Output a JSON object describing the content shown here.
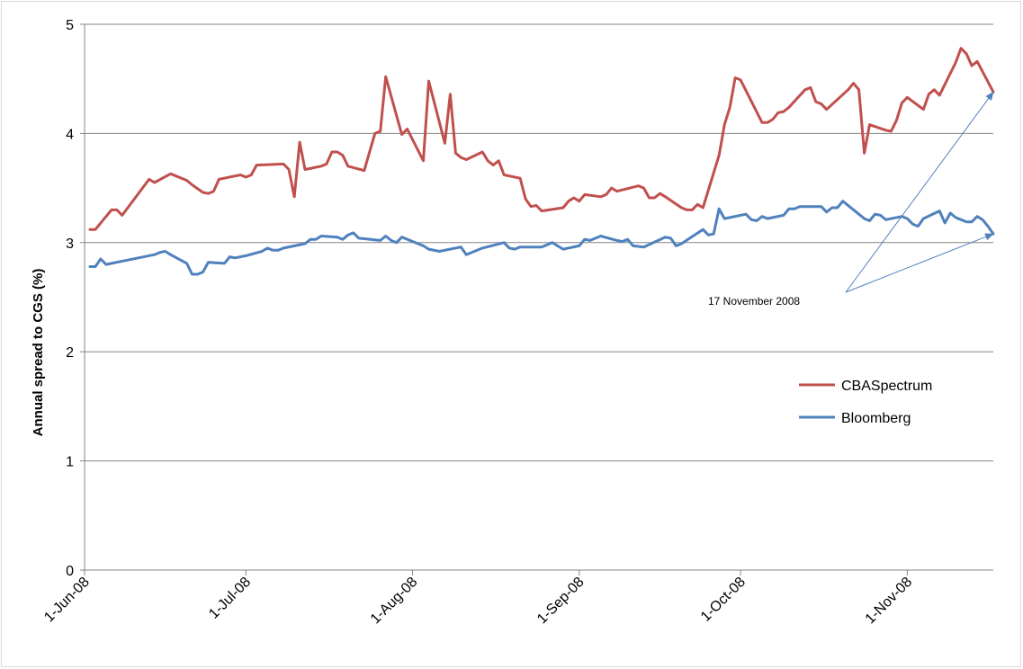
{
  "chart_data": {
    "type": "line",
    "title": "",
    "xlabel": "",
    "ylabel": "Annual spread to CGS (%)",
    "xlim": [
      "2008-06-01",
      "2008-11-17"
    ],
    "ylim": [
      0,
      5
    ],
    "y_ticks": [
      0,
      1,
      2,
      3,
      4,
      5
    ],
    "x_tick_labels": [
      "1-Jun-08",
      "1-Jul-08",
      "1-Aug-08",
      "1-Sep-08",
      "1-Oct-08",
      "1-Nov-08"
    ],
    "x_tick_dates": [
      "2008-06-01",
      "2008-07-01",
      "2008-08-01",
      "2008-09-01",
      "2008-10-01",
      "2008-11-01"
    ],
    "grid": "horizontal",
    "legend_position": "center-right",
    "series": [
      {
        "name": "CBASpectrum",
        "color": "#c0504d",
        "points": [
          [
            "2008-06-02",
            3.12
          ],
          [
            "2008-06-03",
            3.12
          ],
          [
            "2008-06-06",
            3.3
          ],
          [
            "2008-06-07",
            3.3
          ],
          [
            "2008-06-08",
            3.25
          ],
          [
            "2008-06-13",
            3.58
          ],
          [
            "2008-06-14",
            3.55
          ],
          [
            "2008-06-17",
            3.63
          ],
          [
            "2008-06-20",
            3.57
          ],
          [
            "2008-06-21",
            3.53
          ],
          [
            "2008-06-23",
            3.46
          ],
          [
            "2008-06-24",
            3.45
          ],
          [
            "2008-06-25",
            3.47
          ],
          [
            "2008-06-26",
            3.58
          ],
          [
            "2008-06-29",
            3.61
          ],
          [
            "2008-06-30",
            3.62
          ],
          [
            "2008-07-01",
            3.6
          ],
          [
            "2008-07-02",
            3.62
          ],
          [
            "2008-07-03",
            3.71
          ],
          [
            "2008-07-08",
            3.72
          ],
          [
            "2008-07-09",
            3.67
          ],
          [
            "2008-07-10",
            3.42
          ],
          [
            "2008-07-11",
            3.92
          ],
          [
            "2008-07-12",
            3.67
          ],
          [
            "2008-07-15",
            3.7
          ],
          [
            "2008-07-16",
            3.72
          ],
          [
            "2008-07-17",
            3.83
          ],
          [
            "2008-07-18",
            3.83
          ],
          [
            "2008-07-19",
            3.8
          ],
          [
            "2008-07-20",
            3.7
          ],
          [
            "2008-07-23",
            3.66
          ],
          [
            "2008-07-25",
            4.0
          ],
          [
            "2008-07-26",
            4.02
          ],
          [
            "2008-07-27",
            4.52
          ],
          [
            "2008-07-30",
            3.99
          ],
          [
            "2008-07-31",
            4.04
          ],
          [
            "2008-08-03",
            3.75
          ],
          [
            "2008-08-04",
            4.48
          ],
          [
            "2008-08-07",
            3.91
          ],
          [
            "2008-08-08",
            4.36
          ],
          [
            "2008-08-09",
            3.82
          ],
          [
            "2008-08-10",
            3.78
          ],
          [
            "2008-08-11",
            3.76
          ],
          [
            "2008-08-14",
            3.83
          ],
          [
            "2008-08-15",
            3.75
          ],
          [
            "2008-08-16",
            3.71
          ],
          [
            "2008-08-17",
            3.75
          ],
          [
            "2008-08-18",
            3.62
          ],
          [
            "2008-08-21",
            3.59
          ],
          [
            "2008-08-22",
            3.4
          ],
          [
            "2008-08-23",
            3.33
          ],
          [
            "2008-08-24",
            3.34
          ],
          [
            "2008-08-25",
            3.29
          ],
          [
            "2008-08-29",
            3.32
          ],
          [
            "2008-08-30",
            3.38
          ],
          [
            "2008-08-31",
            3.41
          ],
          [
            "2008-09-01",
            3.38
          ],
          [
            "2008-09-02",
            3.44
          ],
          [
            "2008-09-05",
            3.42
          ],
          [
            "2008-09-06",
            3.44
          ],
          [
            "2008-09-07",
            3.5
          ],
          [
            "2008-09-08",
            3.47
          ],
          [
            "2008-09-12",
            3.52
          ],
          [
            "2008-09-13",
            3.5
          ],
          [
            "2008-09-14",
            3.41
          ],
          [
            "2008-09-15",
            3.41
          ],
          [
            "2008-09-16",
            3.45
          ],
          [
            "2008-09-17",
            3.42
          ],
          [
            "2008-09-20",
            3.32
          ],
          [
            "2008-09-21",
            3.3
          ],
          [
            "2008-09-22",
            3.3
          ],
          [
            "2008-09-23",
            3.35
          ],
          [
            "2008-09-24",
            3.32
          ],
          [
            "2008-09-27",
            3.8
          ],
          [
            "2008-09-28",
            4.08
          ],
          [
            "2008-09-29",
            4.24
          ],
          [
            "2008-09-30",
            4.51
          ],
          [
            "2008-10-01",
            4.49
          ],
          [
            "2008-10-05",
            4.1
          ],
          [
            "2008-10-06",
            4.1
          ],
          [
            "2008-10-07",
            4.13
          ],
          [
            "2008-10-08",
            4.19
          ],
          [
            "2008-10-09",
            4.2
          ],
          [
            "2008-10-10",
            4.24
          ],
          [
            "2008-10-13",
            4.4
          ],
          [
            "2008-10-14",
            4.42
          ],
          [
            "2008-10-15",
            4.29
          ],
          [
            "2008-10-16",
            4.27
          ],
          [
            "2008-10-17",
            4.22
          ],
          [
            "2008-10-21",
            4.4
          ],
          [
            "2008-10-22",
            4.46
          ],
          [
            "2008-10-23",
            4.4
          ],
          [
            "2008-10-24",
            3.82
          ],
          [
            "2008-10-25",
            4.08
          ],
          [
            "2008-10-28",
            4.03
          ],
          [
            "2008-10-29",
            4.02
          ],
          [
            "2008-10-30",
            4.12
          ],
          [
            "2008-10-31",
            4.28
          ],
          [
            "2008-11-01",
            4.33
          ],
          [
            "2008-11-04",
            4.22
          ],
          [
            "2008-11-05",
            4.36
          ],
          [
            "2008-11-06",
            4.4
          ],
          [
            "2008-11-07",
            4.35
          ],
          [
            "2008-11-10",
            4.65
          ],
          [
            "2008-11-11",
            4.78
          ],
          [
            "2008-11-12",
            4.73
          ],
          [
            "2008-11-13",
            4.62
          ],
          [
            "2008-11-14",
            4.66
          ],
          [
            "2008-11-17",
            4.38
          ]
        ]
      },
      {
        "name": "Bloomberg",
        "color": "#4f81bd",
        "points": [
          [
            "2008-06-02",
            2.78
          ],
          [
            "2008-06-03",
            2.78
          ],
          [
            "2008-06-04",
            2.85
          ],
          [
            "2008-06-05",
            2.8
          ],
          [
            "2008-06-06",
            2.81
          ],
          [
            "2008-06-11",
            2.86
          ],
          [
            "2008-06-14",
            2.89
          ],
          [
            "2008-06-15",
            2.91
          ],
          [
            "2008-06-16",
            2.92
          ],
          [
            "2008-06-17",
            2.89
          ],
          [
            "2008-06-20",
            2.81
          ],
          [
            "2008-06-21",
            2.71
          ],
          [
            "2008-06-22",
            2.71
          ],
          [
            "2008-06-23",
            2.73
          ],
          [
            "2008-06-24",
            2.82
          ],
          [
            "2008-06-27",
            2.81
          ],
          [
            "2008-06-28",
            2.87
          ],
          [
            "2008-06-29",
            2.86
          ],
          [
            "2008-07-01",
            2.88
          ],
          [
            "2008-07-04",
            2.92
          ],
          [
            "2008-07-05",
            2.95
          ],
          [
            "2008-07-06",
            2.93
          ],
          [
            "2008-07-07",
            2.93
          ],
          [
            "2008-07-08",
            2.95
          ],
          [
            "2008-07-12",
            2.99
          ],
          [
            "2008-07-13",
            3.03
          ],
          [
            "2008-07-14",
            3.03
          ],
          [
            "2008-07-15",
            3.06
          ],
          [
            "2008-07-18",
            3.05
          ],
          [
            "2008-07-19",
            3.03
          ],
          [
            "2008-07-20",
            3.07
          ],
          [
            "2008-07-21",
            3.09
          ],
          [
            "2008-07-22",
            3.04
          ],
          [
            "2008-07-26",
            3.02
          ],
          [
            "2008-07-27",
            3.06
          ],
          [
            "2008-07-28",
            3.02
          ],
          [
            "2008-07-29",
            3.0
          ],
          [
            "2008-07-30",
            3.05
          ],
          [
            "2008-08-03",
            2.97
          ],
          [
            "2008-08-04",
            2.94
          ],
          [
            "2008-08-06",
            2.92
          ],
          [
            "2008-08-10",
            2.96
          ],
          [
            "2008-08-11",
            2.89
          ],
          [
            "2008-08-12",
            2.91
          ],
          [
            "2008-08-14",
            2.95
          ],
          [
            "2008-08-18",
            3.0
          ],
          [
            "2008-08-19",
            2.95
          ],
          [
            "2008-08-20",
            2.94
          ],
          [
            "2008-08-21",
            2.96
          ],
          [
            "2008-08-25",
            2.96
          ],
          [
            "2008-08-27",
            3.0
          ],
          [
            "2008-08-29",
            2.94
          ],
          [
            "2008-09-01",
            2.97
          ],
          [
            "2008-09-02",
            3.03
          ],
          [
            "2008-09-03",
            3.02
          ],
          [
            "2008-09-05",
            3.06
          ],
          [
            "2008-09-08",
            3.02
          ],
          [
            "2008-09-09",
            3.01
          ],
          [
            "2008-09-10",
            3.03
          ],
          [
            "2008-09-11",
            2.97
          ],
          [
            "2008-09-13",
            2.96
          ],
          [
            "2008-09-17",
            3.05
          ],
          [
            "2008-09-18",
            3.04
          ],
          [
            "2008-09-19",
            2.97
          ],
          [
            "2008-09-20",
            2.99
          ],
          [
            "2008-09-24",
            3.12
          ],
          [
            "2008-09-25",
            3.07
          ],
          [
            "2008-09-26",
            3.08
          ],
          [
            "2008-09-27",
            3.31
          ],
          [
            "2008-09-28",
            3.22
          ],
          [
            "2008-10-02",
            3.26
          ],
          [
            "2008-10-03",
            3.21
          ],
          [
            "2008-10-04",
            3.2
          ],
          [
            "2008-10-05",
            3.24
          ],
          [
            "2008-10-06",
            3.22
          ],
          [
            "2008-10-09",
            3.25
          ],
          [
            "2008-10-10",
            3.31
          ],
          [
            "2008-10-11",
            3.31
          ],
          [
            "2008-10-12",
            3.33
          ],
          [
            "2008-10-16",
            3.33
          ],
          [
            "2008-10-17",
            3.28
          ],
          [
            "2008-10-18",
            3.32
          ],
          [
            "2008-10-19",
            3.32
          ],
          [
            "2008-10-20",
            3.38
          ],
          [
            "2008-10-24",
            3.22
          ],
          [
            "2008-10-25",
            3.2
          ],
          [
            "2008-10-26",
            3.26
          ],
          [
            "2008-10-27",
            3.25
          ],
          [
            "2008-10-28",
            3.21
          ],
          [
            "2008-10-31",
            3.24
          ],
          [
            "2008-11-01",
            3.22
          ],
          [
            "2008-11-02",
            3.17
          ],
          [
            "2008-11-03",
            3.15
          ],
          [
            "2008-11-04",
            3.22
          ],
          [
            "2008-11-07",
            3.29
          ],
          [
            "2008-11-08",
            3.18
          ],
          [
            "2008-11-09",
            3.27
          ],
          [
            "2008-11-10",
            3.23
          ],
          [
            "2008-11-11",
            3.21
          ],
          [
            "2008-11-12",
            3.19
          ],
          [
            "2008-11-13",
            3.19
          ],
          [
            "2008-11-14",
            3.24
          ],
          [
            "2008-11-15",
            3.21
          ],
          [
            "2008-11-16",
            3.15
          ],
          [
            "2008-11-17",
            3.08
          ]
        ]
      }
    ],
    "annotation": {
      "text": "17 November 2008",
      "points_to": [
        [
          "2008-11-17",
          4.38
        ],
        [
          "2008-11-17",
          3.08
        ]
      ]
    }
  }
}
